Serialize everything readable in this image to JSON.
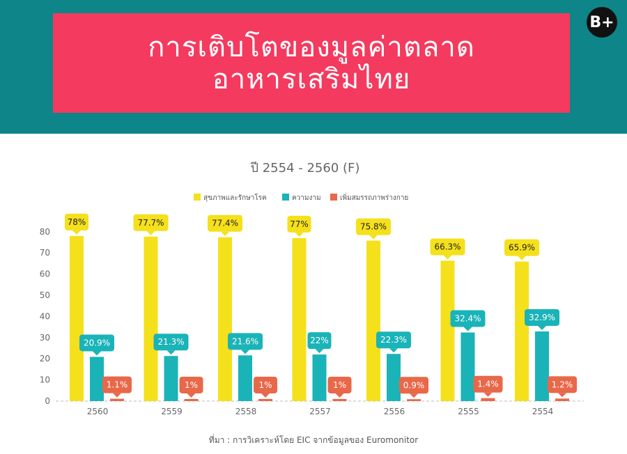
{
  "header": {
    "title_line1": "การเติบโตของมูลค่าตลาด",
    "title_line2": "อาหารเสริมไทย",
    "logo_text": "B+"
  },
  "chart_data": {
    "type": "bar",
    "title": "ปี 2554 - 2560 (F)",
    "categories": [
      "2560",
      "2559",
      "2558",
      "2557",
      "2556",
      "2555",
      "2554"
    ],
    "series": [
      {
        "name": "สุขภาพและรักษาโรค",
        "color": "#f5e01c",
        "values": [
          78,
          77.7,
          77.4,
          77,
          75.8,
          66.3,
          65.9
        ]
      },
      {
        "name": "ความงาม",
        "color": "#1ab3b8",
        "values": [
          20.9,
          21.3,
          21.6,
          22,
          22.3,
          32.4,
          32.9
        ]
      },
      {
        "name": "เพิ่มสมรรถภาพร่างกาย",
        "color": "#e8684a",
        "values": [
          1.1,
          1,
          1,
          1,
          0.9,
          1.4,
          1.2
        ]
      }
    ],
    "data_labels": [
      [
        "78%",
        "77.7%",
        "77.4%",
        "77%",
        "75.8%",
        "66.3%",
        "65.9%"
      ],
      [
        "20.9%",
        "21.3%",
        "21.6%",
        "22%",
        "22.3%",
        "32.4%",
        "32.9%"
      ],
      [
        "1.1%",
        "1%",
        "1%",
        "1%",
        "0.9%",
        "1.4%",
        "1.2%"
      ]
    ],
    "yticks": [
      "0",
      "10",
      "20",
      "30",
      "40",
      "50",
      "60",
      "70",
      "80"
    ],
    "ylim": [
      0,
      80
    ],
    "legend_position": "top-center",
    "grid": false
  },
  "source": "ที่มา : การวิเคราะห์โดย EIC จากข้อมูลของ Euromonitor"
}
